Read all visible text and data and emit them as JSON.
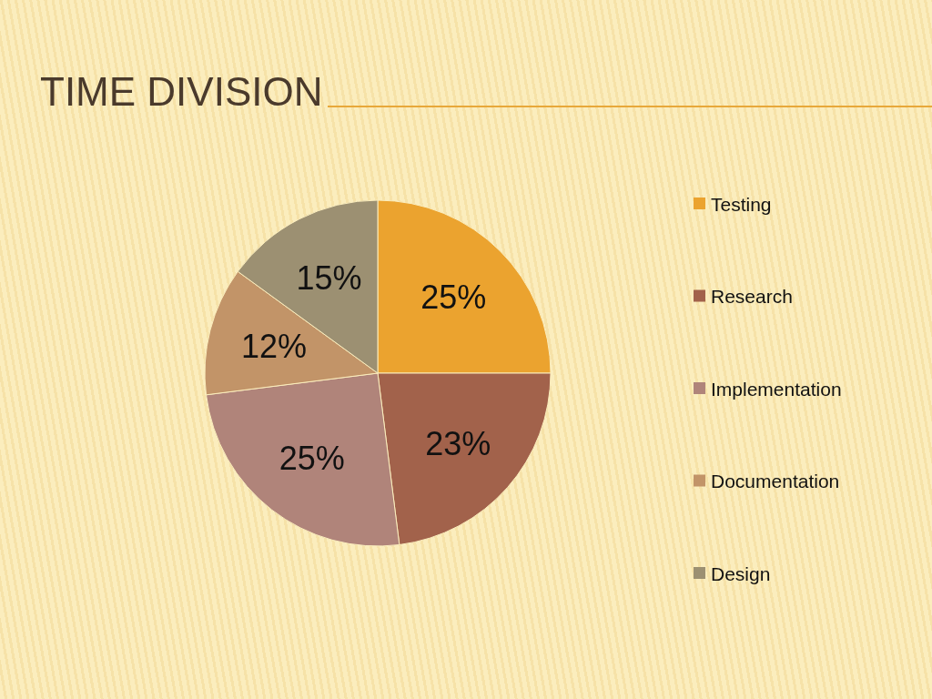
{
  "chart_data": {
    "type": "pie",
    "title": "TIME DIVISION",
    "categories": [
      "Testing",
      "Research",
      "Implementation",
      "Documentation",
      "Design"
    ],
    "values": [
      25,
      23,
      25,
      12,
      15
    ],
    "colors": [
      "#eba32f",
      "#a2624b",
      "#b0847a",
      "#c29468",
      "#9c9072"
    ],
    "value_labels": [
      "25%",
      "23%",
      "25%",
      "12%",
      "15%"
    ],
    "legend": "right"
  }
}
